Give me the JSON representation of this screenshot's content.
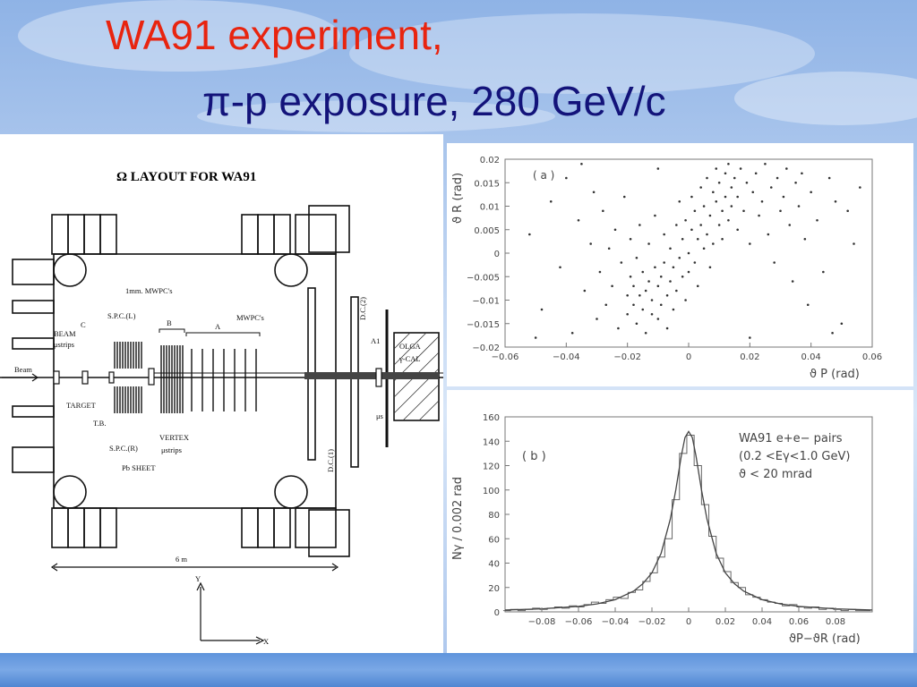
{
  "slide": {
    "title_line1": "WA91 experiment,",
    "title_line2": "π-p exposure, 280 GeV/c"
  },
  "layout_diagram": {
    "heading": "Ω LAYOUT FOR WA91",
    "labels": {
      "mwpc_1mm": "1mm. MWPC's",
      "spc_l": "S.P.C.(L)",
      "spc_r": "S.P.C.(R)",
      "b": "B",
      "a": "A",
      "c": "C",
      "mwpcs": "MWPC's",
      "beam_ustrips_1": "BEAM",
      "beam_ustrips_2": "μstrips",
      "beam": "Beam",
      "target": "TARGET",
      "tb": "T.B.",
      "vertex_1": "VERTEX",
      "vertex_2": "μstrips",
      "pb_sheet": "Pb SHEET",
      "dc2": "D.C.(2)",
      "dc1": "D.C.(1)",
      "a1": "A1",
      "mus": "μs",
      "olga_1": "OLGA",
      "olga_2": "γ-CAL",
      "scale": "6 m",
      "axis_y": "Y",
      "axis_x": "X"
    }
  },
  "chart_data": [
    {
      "type": "scatter",
      "panel_label": "( a )",
      "xlabel": "ϑ P (rad)",
      "ylabel": "ϑ R (rad)",
      "xlim": [
        -0.06,
        0.06
      ],
      "ylim": [
        -0.02,
        0.02
      ],
      "x_ticks": [
        "−0.06",
        "−0.04",
        "−0.02",
        "0",
        "0.02",
        "0.04",
        "0.06"
      ],
      "y_ticks": [
        "0.02",
        "0.015",
        "0.01",
        "0.005",
        "0",
        "−0.005",
        "−0.01",
        "−0.015",
        "−0.02"
      ],
      "points": [
        [
          -0.052,
          0.004
        ],
        [
          -0.048,
          -0.012
        ],
        [
          -0.045,
          0.011
        ],
        [
          -0.042,
          -0.003
        ],
        [
          -0.04,
          0.016
        ],
        [
          -0.038,
          -0.017
        ],
        [
          -0.036,
          0.007
        ],
        [
          -0.034,
          -0.008
        ],
        [
          -0.032,
          0.002
        ],
        [
          -0.031,
          0.013
        ],
        [
          -0.03,
          -0.014
        ],
        [
          -0.029,
          -0.004
        ],
        [
          -0.028,
          0.009
        ],
        [
          -0.027,
          -0.011
        ],
        [
          -0.026,
          0.001
        ],
        [
          -0.025,
          -0.007
        ],
        [
          -0.024,
          0.005
        ],
        [
          -0.023,
          -0.016
        ],
        [
          -0.022,
          -0.002
        ],
        [
          -0.021,
          0.012
        ],
        [
          -0.02,
          -0.009
        ],
        [
          -0.02,
          -0.013
        ],
        [
          -0.019,
          -0.005
        ],
        [
          -0.019,
          0.003
        ],
        [
          -0.018,
          -0.011
        ],
        [
          -0.018,
          -0.007
        ],
        [
          -0.017,
          -0.015
        ],
        [
          -0.017,
          -0.001
        ],
        [
          -0.016,
          -0.009
        ],
        [
          -0.016,
          0.006
        ],
        [
          -0.015,
          -0.012
        ],
        [
          -0.015,
          -0.004
        ],
        [
          -0.014,
          -0.017
        ],
        [
          -0.014,
          -0.008
        ],
        [
          -0.013,
          -0.006
        ],
        [
          -0.013,
          0.002
        ],
        [
          -0.012,
          -0.013
        ],
        [
          -0.012,
          -0.01
        ],
        [
          -0.011,
          -0.003
        ],
        [
          -0.011,
          0.008
        ],
        [
          -0.01,
          -0.014
        ],
        [
          -0.01,
          -0.007
        ],
        [
          -0.009,
          -0.005
        ],
        [
          -0.009,
          -0.011
        ],
        [
          -0.008,
          -0.002
        ],
        [
          -0.008,
          0.004
        ],
        [
          -0.007,
          -0.009
        ],
        [
          -0.007,
          -0.016
        ],
        [
          -0.006,
          -0.006
        ],
        [
          -0.006,
          0.001
        ],
        [
          -0.005,
          -0.012
        ],
        [
          -0.005,
          -0.003
        ],
        [
          -0.004,
          0.006
        ],
        [
          -0.004,
          -0.008
        ],
        [
          -0.003,
          -0.001
        ],
        [
          -0.003,
          0.011
        ],
        [
          -0.002,
          -0.005
        ],
        [
          -0.002,
          0.003
        ],
        [
          -0.001,
          -0.01
        ],
        [
          -0.001,
          0.007
        ],
        [
          0.0,
          0.0
        ],
        [
          0.0,
          -0.004
        ],
        [
          0.001,
          0.005
        ],
        [
          0.001,
          0.012
        ],
        [
          0.002,
          -0.002
        ],
        [
          0.002,
          0.009
        ],
        [
          0.003,
          0.003
        ],
        [
          0.003,
          -0.007
        ],
        [
          0.004,
          0.014
        ],
        [
          0.004,
          0.006
        ],
        [
          0.005,
          0.001
        ],
        [
          0.005,
          0.01
        ],
        [
          0.006,
          0.016
        ],
        [
          0.006,
          0.004
        ],
        [
          0.007,
          0.008
        ],
        [
          0.007,
          -0.003
        ],
        [
          0.008,
          0.013
        ],
        [
          0.008,
          0.002
        ],
        [
          0.009,
          0.011
        ],
        [
          0.009,
          0.018
        ],
        [
          0.01,
          0.006
        ],
        [
          0.01,
          0.015
        ],
        [
          0.011,
          0.009
        ],
        [
          0.011,
          0.003
        ],
        [
          0.012,
          0.017
        ],
        [
          0.012,
          0.012
        ],
        [
          0.013,
          0.007
        ],
        [
          0.013,
          0.019
        ],
        [
          0.014,
          0.014
        ],
        [
          0.014,
          0.01
        ],
        [
          0.015,
          0.016
        ],
        [
          0.016,
          0.005
        ],
        [
          0.016,
          0.012
        ],
        [
          0.017,
          0.018
        ],
        [
          0.018,
          0.009
        ],
        [
          0.019,
          0.015
        ],
        [
          0.02,
          0.002
        ],
        [
          0.021,
          0.013
        ],
        [
          0.022,
          0.017
        ],
        [
          0.023,
          0.008
        ],
        [
          0.024,
          0.011
        ],
        [
          0.025,
          0.019
        ],
        [
          0.026,
          0.004
        ],
        [
          0.027,
          0.014
        ],
        [
          0.028,
          -0.002
        ],
        [
          0.029,
          0.016
        ],
        [
          0.03,
          0.009
        ],
        [
          0.031,
          0.012
        ],
        [
          0.032,
          0.018
        ],
        [
          0.033,
          0.006
        ],
        [
          0.034,
          -0.006
        ],
        [
          0.035,
          0.015
        ],
        [
          0.036,
          0.01
        ],
        [
          0.037,
          0.017
        ],
        [
          0.038,
          0.003
        ],
        [
          0.039,
          -0.011
        ],
        [
          0.04,
          0.013
        ],
        [
          0.042,
          0.007
        ],
        [
          0.044,
          -0.004
        ],
        [
          0.046,
          0.016
        ],
        [
          0.048,
          0.011
        ],
        [
          0.05,
          -0.015
        ],
        [
          0.052,
          0.009
        ],
        [
          0.054,
          0.002
        ],
        [
          0.056,
          0.014
        ],
        [
          -0.05,
          -0.018
        ],
        [
          0.047,
          -0.017
        ],
        [
          -0.01,
          0.018
        ],
        [
          0.02,
          -0.018
        ],
        [
          -0.035,
          0.019
        ]
      ]
    },
    {
      "type": "line",
      "panel_label": "( b )",
      "legend": [
        "WA91 e+e− pairs",
        "(0.2 <Eγ<1.0 GeV)",
        "ϑ  < 20 mrad"
      ],
      "xlabel": "ϑP−ϑR (rad)",
      "ylabel": "Nγ / 0.002 rad",
      "xlim": [
        -0.1,
        0.1
      ],
      "ylim": [
        0,
        160
      ],
      "x_ticks": [
        "−0.08",
        "−0.06",
        "−0.04",
        "−0.02",
        "0",
        "0.02",
        "0.04",
        "0.06",
        "0.08"
      ],
      "y_ticks": [
        "160",
        "140",
        "120",
        "100",
        "80",
        "60",
        "40",
        "20",
        "0"
      ],
      "histogram_x": [
        -0.099,
        -0.095,
        -0.091,
        -0.087,
        -0.083,
        -0.079,
        -0.075,
        -0.071,
        -0.067,
        -0.063,
        -0.059,
        -0.055,
        -0.051,
        -0.047,
        -0.043,
        -0.039,
        -0.035,
        -0.031,
        -0.027,
        -0.023,
        -0.019,
        -0.015,
        -0.011,
        -0.007,
        -0.003,
        0.001,
        0.005,
        0.009,
        0.013,
        0.017,
        0.021,
        0.025,
        0.029,
        0.033,
        0.037,
        0.041,
        0.045,
        0.049,
        0.053,
        0.057,
        0.061,
        0.065,
        0.069,
        0.073,
        0.077,
        0.081,
        0.085,
        0.089,
        0.093,
        0.097
      ],
      "histogram_y": [
        1,
        2,
        1,
        2,
        3,
        2,
        3,
        4,
        3,
        5,
        4,
        6,
        8,
        7,
        10,
        12,
        11,
        16,
        18,
        25,
        32,
        45,
        60,
        92,
        130,
        145,
        120,
        88,
        62,
        44,
        33,
        24,
        20,
        14,
        12,
        10,
        8,
        7,
        5,
        6,
        4,
        3,
        4,
        2,
        3,
        2,
        1,
        2,
        1,
        1
      ],
      "fit_x": [
        -0.1,
        -0.08,
        -0.06,
        -0.05,
        -0.04,
        -0.03,
        -0.025,
        -0.02,
        -0.015,
        -0.01,
        -0.007,
        -0.004,
        -0.002,
        0.0,
        0.002,
        0.004,
        0.007,
        0.01,
        0.015,
        0.02,
        0.025,
        0.03,
        0.04,
        0.05,
        0.06,
        0.08,
        0.1
      ],
      "fit_y": [
        1.5,
        2.5,
        4.5,
        6.5,
        10,
        17,
        23,
        32,
        48,
        76,
        100,
        128,
        143,
        148,
        143,
        128,
        100,
        76,
        48,
        32,
        23,
        17,
        10,
        6.5,
        4.5,
        2.5,
        1.5
      ]
    }
  ]
}
